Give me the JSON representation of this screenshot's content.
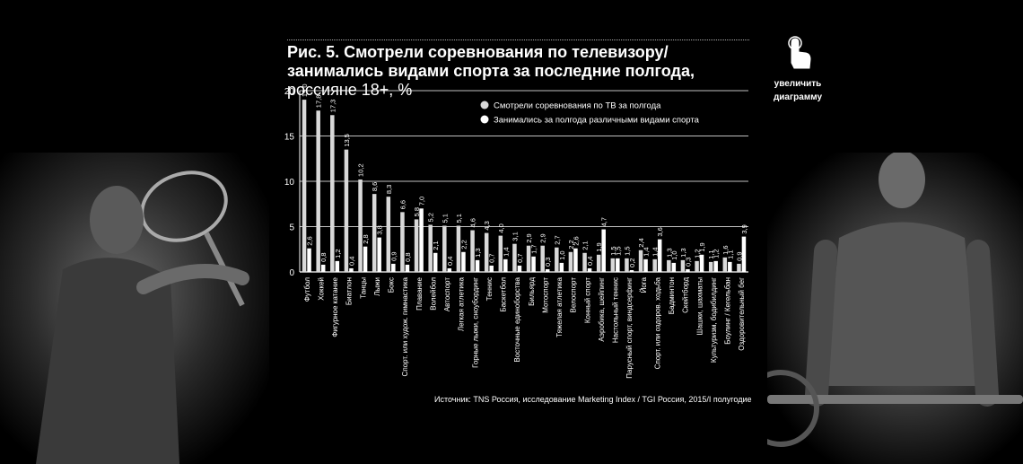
{
  "title": {
    "main": "Рис. 5. Смотрели соревнования по телевизору/занимались видами спорта за последние полгода,",
    "sub": "россияне 18+, %"
  },
  "zoom_button": {
    "label_line1": "увеличить",
    "label_line2": "диаграмму",
    "icon": "hand-pointer-icon"
  },
  "source": "Источник: TNS Россия, исследование Marketing Index / TGI Россия, 2015/I полугодие",
  "colors": {
    "watched": "#d9d9d9",
    "did_sport": "#ffffff",
    "background": "#000000",
    "grid": "#ffffff"
  },
  "chart_data": {
    "type": "bar",
    "ylim": [
      0,
      20
    ],
    "yticks": [
      0,
      5,
      10,
      15,
      20
    ],
    "grid": true,
    "legend_position": "top-right",
    "categories": [
      "Футбол",
      "Хоккей",
      "Фигурное катание",
      "Биатлон",
      "Танцы",
      "Лыжи",
      "Бокс",
      "Спорт. или худож. гимнастика",
      "Плавание",
      "Волейбол",
      "Автоспорт",
      "Легкая атлетика",
      "Горные лыжи, сноубординг",
      "Теннис",
      "Баскетбол",
      "Восточные единоборства",
      "Бильярд",
      "Мотоспорт",
      "Тяжелая атлетика",
      "Велоспорт",
      "Конный спорт",
      "Аэробика, шейпинг",
      "Настольный теннис",
      "Парусный спорт, виндсерфинг",
      "Йога",
      "Спорт. или оздоров. ходьба",
      "Бадминтон",
      "Скейтборд",
      "Шашки, шахматы",
      "Культуризм, бодибилдинг",
      "Боулинг / Кегельбан",
      "Оздоровительный бег"
    ],
    "series": [
      {
        "name": "Смотрели соревнования по ТВ за полгода",
        "values": [
          19.0,
          17.8,
          17.3,
          13.5,
          10.2,
          8.6,
          8.3,
          6.6,
          5.8,
          5.2,
          5.1,
          5.1,
          4.6,
          4.3,
          4.0,
          3.1,
          2.9,
          2.9,
          2.7,
          2.2,
          2.1,
          1.9,
          1.5,
          1.5,
          2.4,
          1.4,
          1.3,
          1.3,
          1.2,
          1.1,
          1.6,
          0.9
        ],
        "labels": [
          "19,0",
          "17,8",
          "17,3",
          "13,5",
          "10,2",
          "8,6",
          "8,3",
          "6,6",
          "5,8",
          "5,2",
          "5,1",
          "5,1",
          "4,6",
          "4,3",
          "4,0",
          "3,1",
          "2,9",
          "2,9",
          "2,7",
          "2,2",
          "2,1",
          "1,9",
          "1,5",
          "1,5",
          "2,4",
          "1,4",
          "1,3",
          "1,3",
          "1,2",
          "1,1",
          "1,6",
          "0,9"
        ]
      },
      {
        "name": "Занимались за полгода различными видами спорта",
        "values": [
          2.6,
          0.8,
          1.2,
          0.4,
          2.8,
          3.8,
          0.9,
          0.8,
          7.0,
          2.1,
          0.4,
          2.2,
          1.3,
          0.7,
          1.4,
          0.7,
          1.7,
          0.3,
          1.0,
          2.6,
          0.4,
          4.7,
          1.5,
          0.2,
          1.4,
          3.6,
          1.0,
          0.3,
          1.9,
          1.2,
          1.1,
          3.9
        ],
        "labels": [
          "2,6",
          "0,8",
          "1,2",
          "0,4",
          "2,8",
          "3,8",
          "0,9",
          "0,8",
          "7,0",
          "2,1",
          "0,4",
          "2,2",
          "1,3",
          "0,7",
          "1,4",
          "0,7",
          "1,7",
          "0,3",
          "1,0",
          "2,6",
          "0,4",
          "4,7",
          "1,5",
          "0,2",
          "1,4",
          "3,6",
          "1,0",
          "0,3",
          "1,9",
          "1,2",
          "1,1",
          "3,9"
        ]
      }
    ]
  }
}
